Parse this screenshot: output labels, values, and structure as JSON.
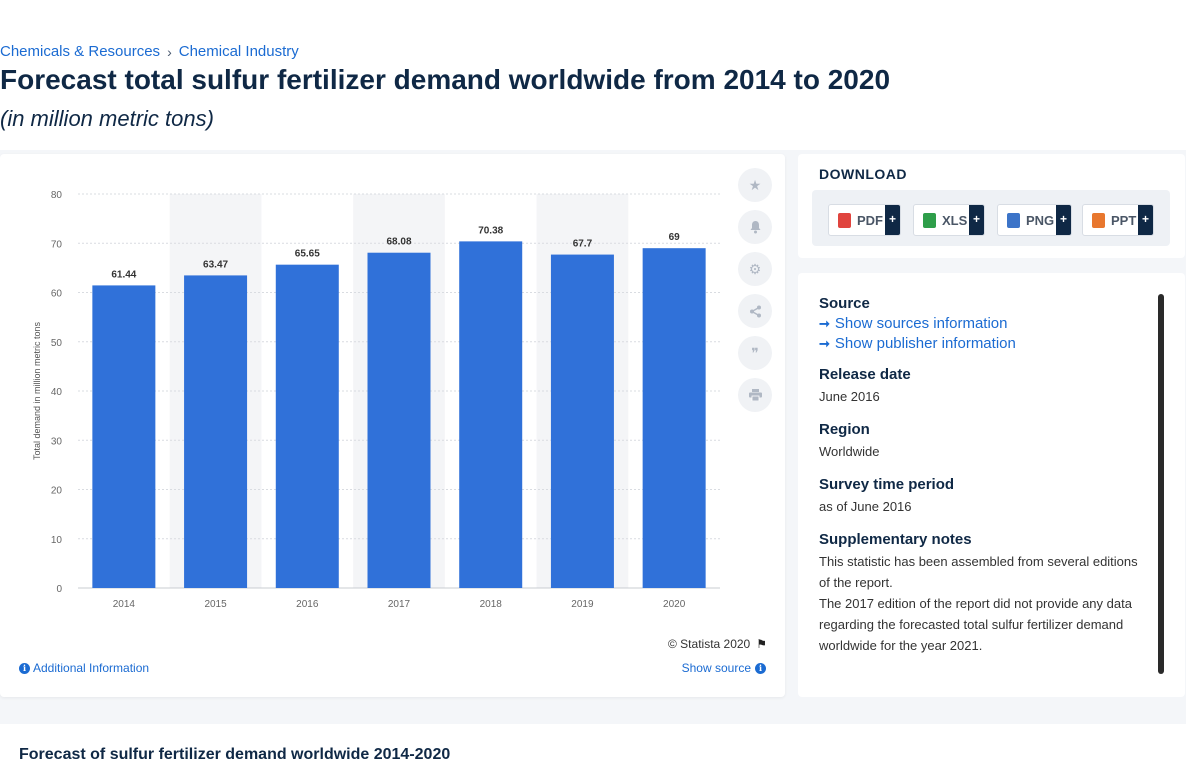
{
  "breadcrumb": {
    "items": [
      "Chemicals & Resources",
      "Chemical Industry"
    ],
    "separator": "›"
  },
  "header": {
    "title": "Forecast total sulfur fertilizer demand worldwide from 2014 to 2020",
    "subtitle": "(in million metric tons)"
  },
  "chart_data": {
    "type": "bar",
    "categories": [
      "2014",
      "2015",
      "2016",
      "2017",
      "2018",
      "2019",
      "2020"
    ],
    "values": [
      61.44,
      63.47,
      65.65,
      68.08,
      70.38,
      67.7,
      69
    ],
    "value_labels": [
      "61.44",
      "63.47",
      "65.65",
      "68.08",
      "70.38",
      "67.7",
      "69"
    ],
    "ylabel": "Total demand in million metric tons",
    "xlabel": "",
    "ylim": [
      0,
      80
    ],
    "yticks": [
      0,
      10,
      20,
      30,
      40,
      50,
      60,
      70,
      80
    ],
    "grid": true,
    "bar_color": "#3071d9"
  },
  "chart_footer": {
    "copyright": "© Statista 2020",
    "additional_info": "Additional Information",
    "show_source": "Show source"
  },
  "tools": [
    "star-icon",
    "bell-icon",
    "gear-icon",
    "share-icon",
    "quote-icon",
    "print-icon"
  ],
  "download": {
    "heading": "DOWNLOAD",
    "buttons": [
      {
        "label": "PDF",
        "plus": "+",
        "color": "#e0443e"
      },
      {
        "label": "XLS",
        "plus": "+",
        "color": "#2e9e4a"
      },
      {
        "label": "PNG",
        "plus": "+",
        "color": "#3c74c8"
      },
      {
        "label": "PPT",
        "plus": "+",
        "color": "#e8772e"
      }
    ]
  },
  "meta": {
    "source_label": "Source",
    "show_sources": "Show sources information",
    "show_publisher": "Show publisher information",
    "release_label": "Release date",
    "release_value": "June 2016",
    "region_label": "Region",
    "region_value": "Worldwide",
    "survey_label": "Survey time period",
    "survey_value": "as of June 2016",
    "notes_label": "Supplementary notes",
    "notes_1": "This statistic has been assembled from several editions of the report.",
    "notes_2": "The 2017 edition of the report did not provide any data regarding the forecasted total sulfur fertilizer demand worldwide for the year 2021."
  },
  "bottom": {
    "title": "Forecast of sulfur fertilizer demand worldwide 2014-2020"
  }
}
